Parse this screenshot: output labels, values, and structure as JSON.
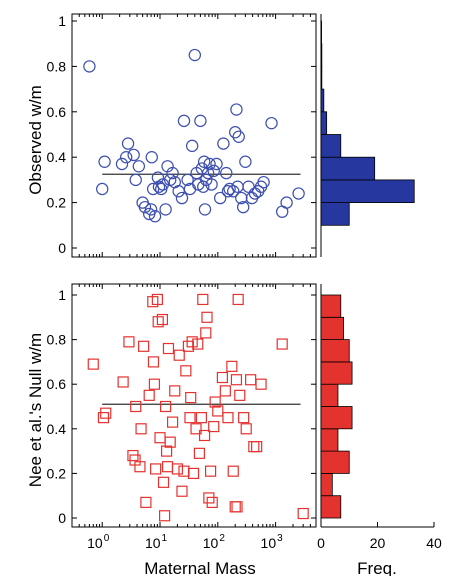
{
  "chart_data": [
    {
      "type": "scatter",
      "panel": "observed-scatter",
      "ylabel": "Observed w/m",
      "xlabel": "",
      "xscale": "log",
      "xlim": [
        0.3,
        5000
      ],
      "ylim": [
        -0.03,
        1.03
      ],
      "yticks": [
        "0",
        "0.2",
        "0.4",
        "0.6",
        "0.8",
        "1"
      ],
      "marker": "circle",
      "color": "#3d4fb0",
      "mean_line": 0.325,
      "points": [
        [
          0.6,
          0.8
        ],
        [
          1.0,
          0.26
        ],
        [
          1.1,
          0.38
        ],
        [
          2.2,
          0.37
        ],
        [
          2.6,
          0.4
        ],
        [
          2.8,
          0.46
        ],
        [
          3.5,
          0.41
        ],
        [
          3.8,
          0.3
        ],
        [
          4.3,
          0.36
        ],
        [
          5.0,
          0.2
        ],
        [
          5.5,
          0.18
        ],
        [
          6.5,
          0.15
        ],
        [
          7.0,
          0.17
        ],
        [
          7.2,
          0.4
        ],
        [
          7.6,
          0.26
        ],
        [
          8.2,
          0.14
        ],
        [
          9.2,
          0.31
        ],
        [
          9.6,
          0.27
        ],
        [
          10.5,
          0.26
        ],
        [
          11.2,
          0.28
        ],
        [
          12.5,
          0.17
        ],
        [
          13.5,
          0.36
        ],
        [
          15.0,
          0.3
        ],
        [
          16.5,
          0.33
        ],
        [
          18.0,
          0.29
        ],
        [
          21.0,
          0.25
        ],
        [
          24.0,
          0.22
        ],
        [
          26.0,
          0.56
        ],
        [
          30.0,
          0.3
        ],
        [
          33.0,
          0.26
        ],
        [
          36.0,
          0.45
        ],
        [
          40.0,
          0.85
        ],
        [
          43.0,
          0.33
        ],
        [
          46.0,
          0.28
        ],
        [
          50.0,
          0.56
        ],
        [
          53.0,
          0.35
        ],
        [
          56.0,
          0.27
        ],
        [
          58.0,
          0.38
        ],
        [
          60.0,
          0.17
        ],
        [
          63.0,
          0.3
        ],
        [
          68.0,
          0.33
        ],
        [
          72.0,
          0.37
        ],
        [
          78.0,
          0.28
        ],
        [
          85.0,
          0.34
        ],
        [
          95.0,
          0.37
        ],
        [
          110.0,
          0.22
        ],
        [
          125.0,
          0.46
        ],
        [
          140.0,
          0.33
        ],
        [
          150.0,
          0.25
        ],
        [
          160.0,
          0.26
        ],
        [
          185.0,
          0.25
        ],
        [
          200.0,
          0.51
        ],
        [
          210.0,
          0.61
        ],
        [
          220.0,
          0.27
        ],
        [
          230.0,
          0.49
        ],
        [
          255.0,
          0.22
        ],
        [
          275.0,
          0.18
        ],
        [
          300.0,
          0.38
        ],
        [
          340.0,
          0.27
        ],
        [
          390.0,
          0.22
        ],
        [
          440.0,
          0.24
        ],
        [
          500.0,
          0.25
        ],
        [
          560.0,
          0.27
        ],
        [
          620.0,
          0.29
        ],
        [
          850.0,
          0.55
        ],
        [
          1300.0,
          0.16
        ],
        [
          1550.0,
          0.2
        ],
        [
          2500.0,
          0.24
        ]
      ]
    },
    {
      "type": "bar",
      "panel": "observed-histogram",
      "orientation": "horizontal",
      "bin_width": 0.1,
      "bin_centers": [
        0.05,
        0.15,
        0.25,
        0.35,
        0.45,
        0.55,
        0.65,
        0.75,
        0.85,
        0.95
      ],
      "values": [
        0,
        10,
        33,
        19,
        7,
        2,
        1,
        0.3,
        0.3,
        0.2
      ],
      "xlim": [
        0,
        40
      ],
      "color": "#26379f"
    },
    {
      "type": "scatter",
      "panel": "null-scatter",
      "ylabel": "Nee et al.'s Null w/m",
      "xlabel": "Maternal Mass",
      "xscale": "log",
      "xlim": [
        0.3,
        5000
      ],
      "ylim": [
        -0.03,
        1.03
      ],
      "xticks": [
        {
          "base": "10",
          "exp": "0",
          "value": 1
        },
        {
          "base": "10",
          "exp": "1",
          "value": 10
        },
        {
          "base": "10",
          "exp": "2",
          "value": 100
        },
        {
          "base": "10",
          "exp": "3",
          "value": 1000
        }
      ],
      "yticks": [
        "0",
        "0.2",
        "0.4",
        "0.6",
        "0.8",
        "1"
      ],
      "marker": "square",
      "color": "#e4322f",
      "mean_line": 0.51,
      "points": [
        [
          0.7,
          0.69
        ],
        [
          1.05,
          0.45
        ],
        [
          1.15,
          0.47
        ],
        [
          2.3,
          0.61
        ],
        [
          2.9,
          0.79
        ],
        [
          3.4,
          0.28
        ],
        [
          3.7,
          0.26
        ],
        [
          3.8,
          0.5
        ],
        [
          4.5,
          0.23
        ],
        [
          4.7,
          0.4
        ],
        [
          5.2,
          0.77
        ],
        [
          5.7,
          0.07
        ],
        [
          6.5,
          0.55
        ],
        [
          7.5,
          0.97
        ],
        [
          7.7,
          0.7
        ],
        [
          8.0,
          0.6
        ],
        [
          8.4,
          0.22
        ],
        [
          9.0,
          0.98
        ],
        [
          9.3,
          0.88
        ],
        [
          10.0,
          0.36
        ],
        [
          11.0,
          0.89
        ],
        [
          11.5,
          0.16
        ],
        [
          12.0,
          0.01
        ],
        [
          12.5,
          0.5
        ],
        [
          13.0,
          0.3
        ],
        [
          13.5,
          0.23
        ],
        [
          14.0,
          0.76
        ],
        [
          15.0,
          0.34
        ],
        [
          16.5,
          0.43
        ],
        [
          18.0,
          0.57
        ],
        [
          20.0,
          0.22
        ],
        [
          21.5,
          0.73
        ],
        [
          24.0,
          0.12
        ],
        [
          26.0,
          0.21
        ],
        [
          28.0,
          0.66
        ],
        [
          31.0,
          0.77
        ],
        [
          33.0,
          0.45
        ],
        [
          34.0,
          0.54
        ],
        [
          36.0,
          0.79
        ],
        [
          38.0,
          0.2
        ],
        [
          42.0,
          0.4
        ],
        [
          45.0,
          0.78
        ],
        [
          48.0,
          0.29
        ],
        [
          52.0,
          0.45
        ],
        [
          55.0,
          0.98
        ],
        [
          59.0,
          0.37
        ],
        [
          62.0,
          0.83
        ],
        [
          65.0,
          0.9
        ],
        [
          70.0,
          0.09
        ],
        [
          75.0,
          0.21
        ],
        [
          80.0,
          0.07
        ],
        [
          85.0,
          0.41
        ],
        [
          90.0,
          0.52
        ],
        [
          100.0,
          0.48
        ],
        [
          120.0,
          0.63
        ],
        [
          135.0,
          0.57
        ],
        [
          150.0,
          0.45
        ],
        [
          175.0,
          0.68
        ],
        [
          185.0,
          0.21
        ],
        [
          200.0,
          0.05
        ],
        [
          210.0,
          0.62
        ],
        [
          215.0,
          0.05
        ],
        [
          225.0,
          0.98
        ],
        [
          240.0,
          0.55
        ],
        [
          280.0,
          0.45
        ],
        [
          310.0,
          0.4
        ],
        [
          370.0,
          0.62
        ],
        [
          420.0,
          0.32
        ],
        [
          470.0,
          0.32
        ],
        [
          560.0,
          0.6
        ],
        [
          1300.0,
          0.78
        ],
        [
          3000.0,
          0.02
        ]
      ]
    },
    {
      "type": "bar",
      "panel": "null-histogram",
      "orientation": "horizontal",
      "xlabel": "Freq.",
      "xlim": [
        0,
        40
      ],
      "xticks": [
        "0",
        "20",
        "40"
      ],
      "bin_width": 0.1,
      "bin_centers": [
        0.05,
        0.15,
        0.25,
        0.35,
        0.45,
        0.55,
        0.65,
        0.75,
        0.85,
        0.95
      ],
      "values": [
        7,
        4,
        10,
        6,
        11,
        6,
        11,
        10,
        8,
        7
      ],
      "color": "#e4322f"
    }
  ]
}
